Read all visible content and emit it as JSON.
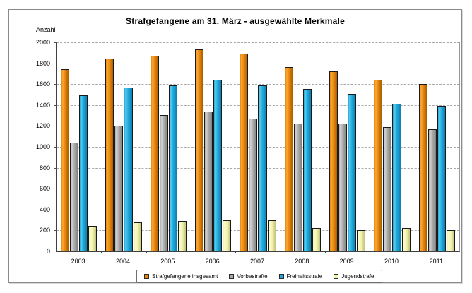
{
  "window": {
    "background": "#ffffff",
    "frame_border": "#8a8a8a"
  },
  "chart_data": {
    "type": "bar",
    "title": "Strafgefangene am 31. März - ausgewählte Merkmale",
    "ylabel": "Anzahl",
    "xlabel": "",
    "categories": [
      "2003",
      "2004",
      "2005",
      "2006",
      "2007",
      "2008",
      "2009",
      "2010",
      "2011"
    ],
    "series": [
      {
        "name": "Strafgefangene insgesamt",
        "color": "#E8860D",
        "color_light": "#F9A833",
        "color_dark": "#A85F00",
        "values": [
          1745,
          1845,
          1875,
          1935,
          1890,
          1765,
          1720,
          1640,
          1600
        ]
      },
      {
        "name": "Vorbestrafte",
        "color": "#ABABAB",
        "color_light": "#D2D2D2",
        "color_dark": "#808080",
        "values": [
          1040,
          1205,
          1305,
          1340,
          1270,
          1220,
          1225,
          1190,
          1170
        ]
      },
      {
        "name": "Freiheitsstrafe",
        "color": "#1CA9DB",
        "color_light": "#5FC9EC",
        "color_dark": "#0E7FAF",
        "values": [
          1495,
          1565,
          1585,
          1640,
          1590,
          1555,
          1510,
          1415,
          1395
        ]
      },
      {
        "name": "Jugendstrafe",
        "color": "#F2F2AC",
        "color_light": "#FAFAD0",
        "color_dark": "#C2C27E",
        "values": [
          240,
          275,
          290,
          295,
          300,
          220,
          205,
          220,
          205
        ]
      }
    ],
    "ylim": [
      0,
      2000
    ],
    "yticks": [
      0,
      200,
      400,
      600,
      800,
      1000,
      1200,
      1400,
      1600,
      1800,
      2000
    ],
    "grid": "horizontal-dashed",
    "legend_position": "bottom"
  }
}
